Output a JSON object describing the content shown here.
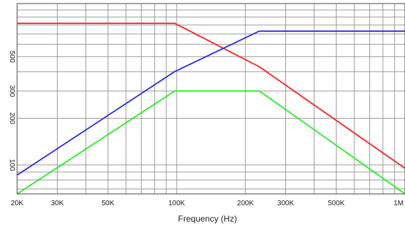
{
  "chart_data": {
    "type": "line",
    "xlabel": "Frequency (Hz)",
    "ylabel": "",
    "xscale": "log",
    "yscale": "log",
    "xlim": [
      20000,
      1000000
    ],
    "ylim": [
      65,
      1100
    ],
    "grid": true,
    "x_tick_values": [
      20000,
      30000,
      50000,
      100000,
      200000,
      300000,
      500000,
      1000000
    ],
    "x_tick_labels": [
      "20K",
      "30K",
      "50K",
      "100K",
      "200K",
      "300K",
      "500K",
      "1M"
    ],
    "y_tick_values": [
      100,
      200,
      300,
      500
    ],
    "y_tick_labels": [
      "100",
      "200",
      "300",
      "500"
    ],
    "series": [
      {
        "color": "#ff2020",
        "x": [
          20000,
          98000,
          230000,
          1000000
        ],
        "y": [
          820,
          820,
          430,
          95
        ]
      },
      {
        "color": "#2828e8",
        "x": [
          20000,
          98000,
          230000,
          1000000
        ],
        "y": [
          86,
          400,
          730,
          730
        ]
      },
      {
        "color": "#22ee22",
        "x": [
          20000,
          98000,
          230000,
          1000000
        ],
        "y": [
          65,
          300,
          300,
          65
        ]
      }
    ]
  }
}
